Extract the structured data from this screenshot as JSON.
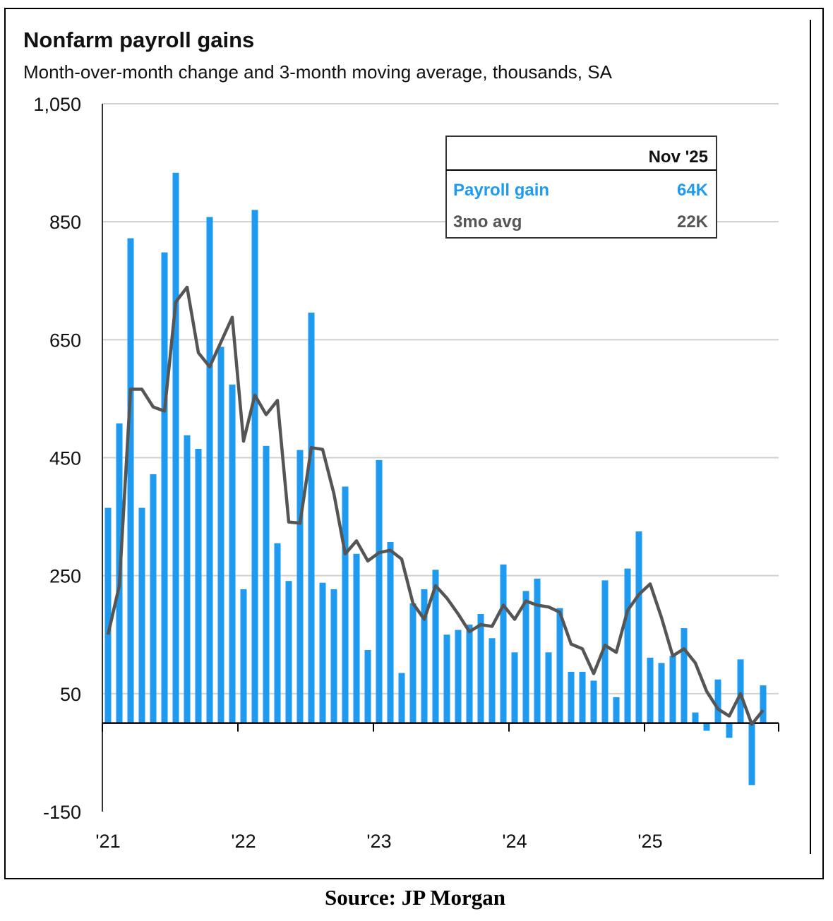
{
  "chart_data": {
    "type": "bar",
    "title": "Nonfarm payroll gains",
    "subtitle": "Month-over-month change and 3-month moving average, thousands, SA",
    "xlabel": "",
    "ylabel": "",
    "ylim": [
      -150,
      1050
    ],
    "yticks": [
      -150,
      50,
      250,
      450,
      650,
      850,
      1050
    ],
    "ytick_labels": [
      "-150",
      "50",
      "250",
      "450",
      "650",
      "850",
      "1,050"
    ],
    "xtick_labels": [
      "'21",
      "'22",
      "'23",
      "'24",
      "'25"
    ],
    "x_start": "2021-01",
    "x_end": "2025-11",
    "grid": true,
    "colors": {
      "bars": "#1e9bf0",
      "line": "#555555"
    },
    "series": [
      {
        "name": "Payroll gain",
        "type": "bar",
        "values": [
          365,
          508,
          822,
          365,
          422,
          798,
          933,
          488,
          465,
          858,
          638,
          574,
          227,
          870,
          470,
          305,
          241,
          463,
          696,
          238,
          227,
          401,
          287,
          124,
          446,
          307,
          85,
          203,
          227,
          260,
          150,
          158,
          167,
          185,
          144,
          269,
          120,
          224,
          245,
          120,
          195,
          87,
          87,
          72,
          242,
          44,
          262,
          325,
          111,
          102,
          114,
          161,
          18,
          -13,
          74,
          -25,
          108,
          -105,
          64
        ]
      },
      {
        "name": "3mo avg",
        "type": "line",
        "values": [
          150,
          233,
          566,
          566,
          536,
          529,
          714,
          739,
          628,
          604,
          646,
          688,
          478,
          556,
          523,
          547,
          341,
          339,
          467,
          464,
          389,
          287,
          309,
          275,
          289,
          293,
          278,
          203,
          176,
          233,
          212,
          185,
          155,
          167,
          164,
          200,
          176,
          207,
          200,
          197,
          188,
          134,
          126,
          84,
          132,
          120,
          191,
          218,
          236,
          179,
          114,
          126,
          102,
          54,
          24,
          12,
          50,
          -2,
          22
        ]
      }
    ],
    "legend": {
      "placement": "top-right",
      "header": "Nov '25",
      "rows": [
        {
          "label": "Payroll gain",
          "value": "64K"
        },
        {
          "label": "3mo avg",
          "value": "22K"
        }
      ]
    }
  },
  "source": "Source: JP Morgan"
}
